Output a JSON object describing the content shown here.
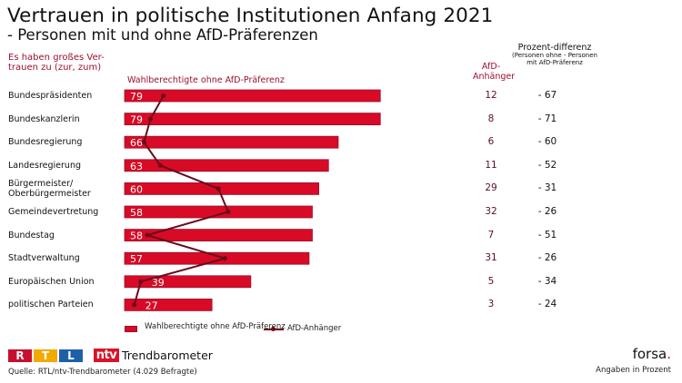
{
  "header": {
    "title": "Vertrauen in politische Institutionen Anfang 2021",
    "subtitle": "- Personen mit und ohne AfD-Präferenzen",
    "question": "Es haben großes Ver-trauen zu (zur, zum)"
  },
  "columns": {
    "afd_header": "AfD-Anhänger",
    "diff_header_main": "Prozent-differenz",
    "diff_header_note": "(Personen ohne - Personen mit AfD-Präferenz"
  },
  "legend": {
    "bar_label": "Wahlberechtigte ohne AfD-Präferenz",
    "line_label": "AfD-Anhänger"
  },
  "footer": {
    "brand_rtl": [
      "R",
      "T",
      "L"
    ],
    "brand_ntv": "ntv",
    "brand_label": "Trendbarometer",
    "source": "Quelle: RTL/ntv-Trendbarometer (4.029 Befragte)",
    "publisher": "forsa",
    "publisher_dot": ".",
    "unit_note": "Angaben in Prozent"
  },
  "colors": {
    "bar": "#d80a25",
    "bar_border": "#9b1030",
    "line": "#6b0a1a",
    "accent_text": "#9b1030"
  },
  "chart_data": {
    "type": "bar",
    "orientation": "horizontal",
    "title": "Vertrauen in politische Institutionen Anfang 2021",
    "subtitle": "- Personen mit und ohne AfD-Präferenzen",
    "xlabel": "",
    "ylabel": "",
    "unit": "Prozent",
    "xlim": [
      0,
      100
    ],
    "grid": false,
    "legend_position": "bottom",
    "categories": [
      "Bundespräsidenten",
      "Bundeskanzlerin",
      "Bundesregierung",
      "Landesregierung",
      "Bürgermeister/ Oberbürgermeister",
      "Gemeindevertretung",
      "Bundestag",
      "Stadtverwaltung",
      "Europäischen Union",
      "politischen Parteien"
    ],
    "series": [
      {
        "name": "Wahlberechtigte ohne AfD-Präferenz",
        "type": "bar",
        "values": [
          79,
          79,
          66,
          63,
          60,
          58,
          58,
          57,
          39,
          27
        ]
      },
      {
        "name": "AfD-Anhänger",
        "type": "line",
        "values": [
          12,
          8,
          6,
          11,
          29,
          32,
          7,
          31,
          5,
          3
        ]
      }
    ],
    "difference": {
      "label": "Prozent-differenz",
      "values": [
        "- 67",
        "- 71",
        "- 60",
        "- 52",
        "- 31",
        "- 26",
        "- 51",
        "- 26",
        "- 34",
        "- 24"
      ]
    },
    "series_header": "Wahlberechtigte ohne AfD-Präferenz"
  }
}
